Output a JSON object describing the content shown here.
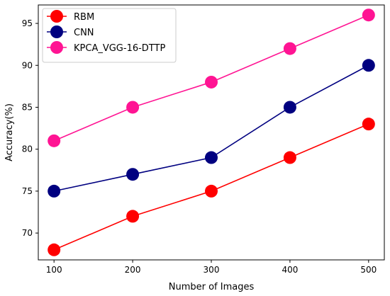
{
  "chart_data": {
    "type": "line",
    "title": "",
    "xlabel": "Number of Images",
    "ylabel": "Accuracy(%)",
    "x": [
      100,
      200,
      300,
      400,
      500
    ],
    "xlim": [
      80,
      520
    ],
    "ylim": [
      66.8,
      97.2
    ],
    "xticks": [
      "100",
      "200",
      "300",
      "400",
      "500"
    ],
    "yticks": [
      "70",
      "75",
      "80",
      "85",
      "90",
      "95"
    ],
    "grid": false,
    "legend_position": "top-left",
    "series": [
      {
        "name": "RBM",
        "values": [
          68,
          72,
          75,
          79,
          83
        ],
        "color": "#ff0000"
      },
      {
        "name": "CNN",
        "values": [
          75,
          77,
          79,
          85,
          90
        ],
        "color": "#000080"
      },
      {
        "name": "KPCA_VGG-16-DTTP",
        "values": [
          81,
          85,
          88,
          92,
          96
        ],
        "color": "#ff1493"
      }
    ]
  }
}
